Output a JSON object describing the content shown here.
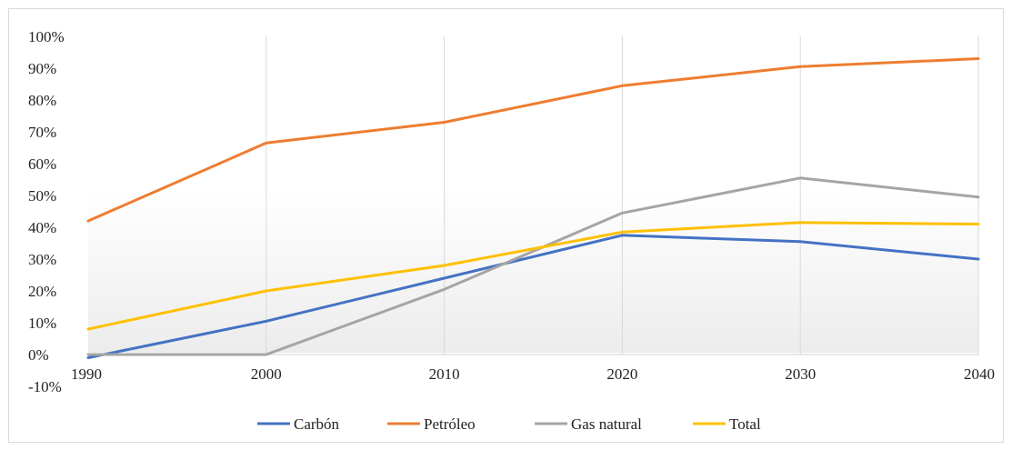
{
  "chart_data": {
    "type": "line",
    "x": [
      1990,
      2000,
      2010,
      2020,
      2030,
      2040
    ],
    "y_ticks": [
      "-10%",
      "0%",
      "10%",
      "20%",
      "30%",
      "40%",
      "50%",
      "60%",
      "70%",
      "80%",
      "90%",
      "100%"
    ],
    "ylim": [
      -10,
      100
    ],
    "ylabel": "",
    "xlabel": "",
    "grid": "vertical",
    "legend_position": "bottom",
    "series": [
      {
        "name": "Carbón",
        "color": "#4472c4",
        "values": [
          -1,
          10.5,
          24,
          37.5,
          35.5,
          30
        ]
      },
      {
        "name": "Petróleo",
        "color": "#ed7d31",
        "values": [
          42,
          66.5,
          73,
          84.5,
          90.5,
          93
        ]
      },
      {
        "name": "Gas natural",
        "color": "#a5a5a5",
        "values": [
          0,
          0,
          20.5,
          44.5,
          55.5,
          49.5
        ]
      },
      {
        "name": "Total",
        "color": "#ffc000",
        "values": [
          8,
          20,
          28,
          38.5,
          41.5,
          41
        ]
      }
    ]
  }
}
